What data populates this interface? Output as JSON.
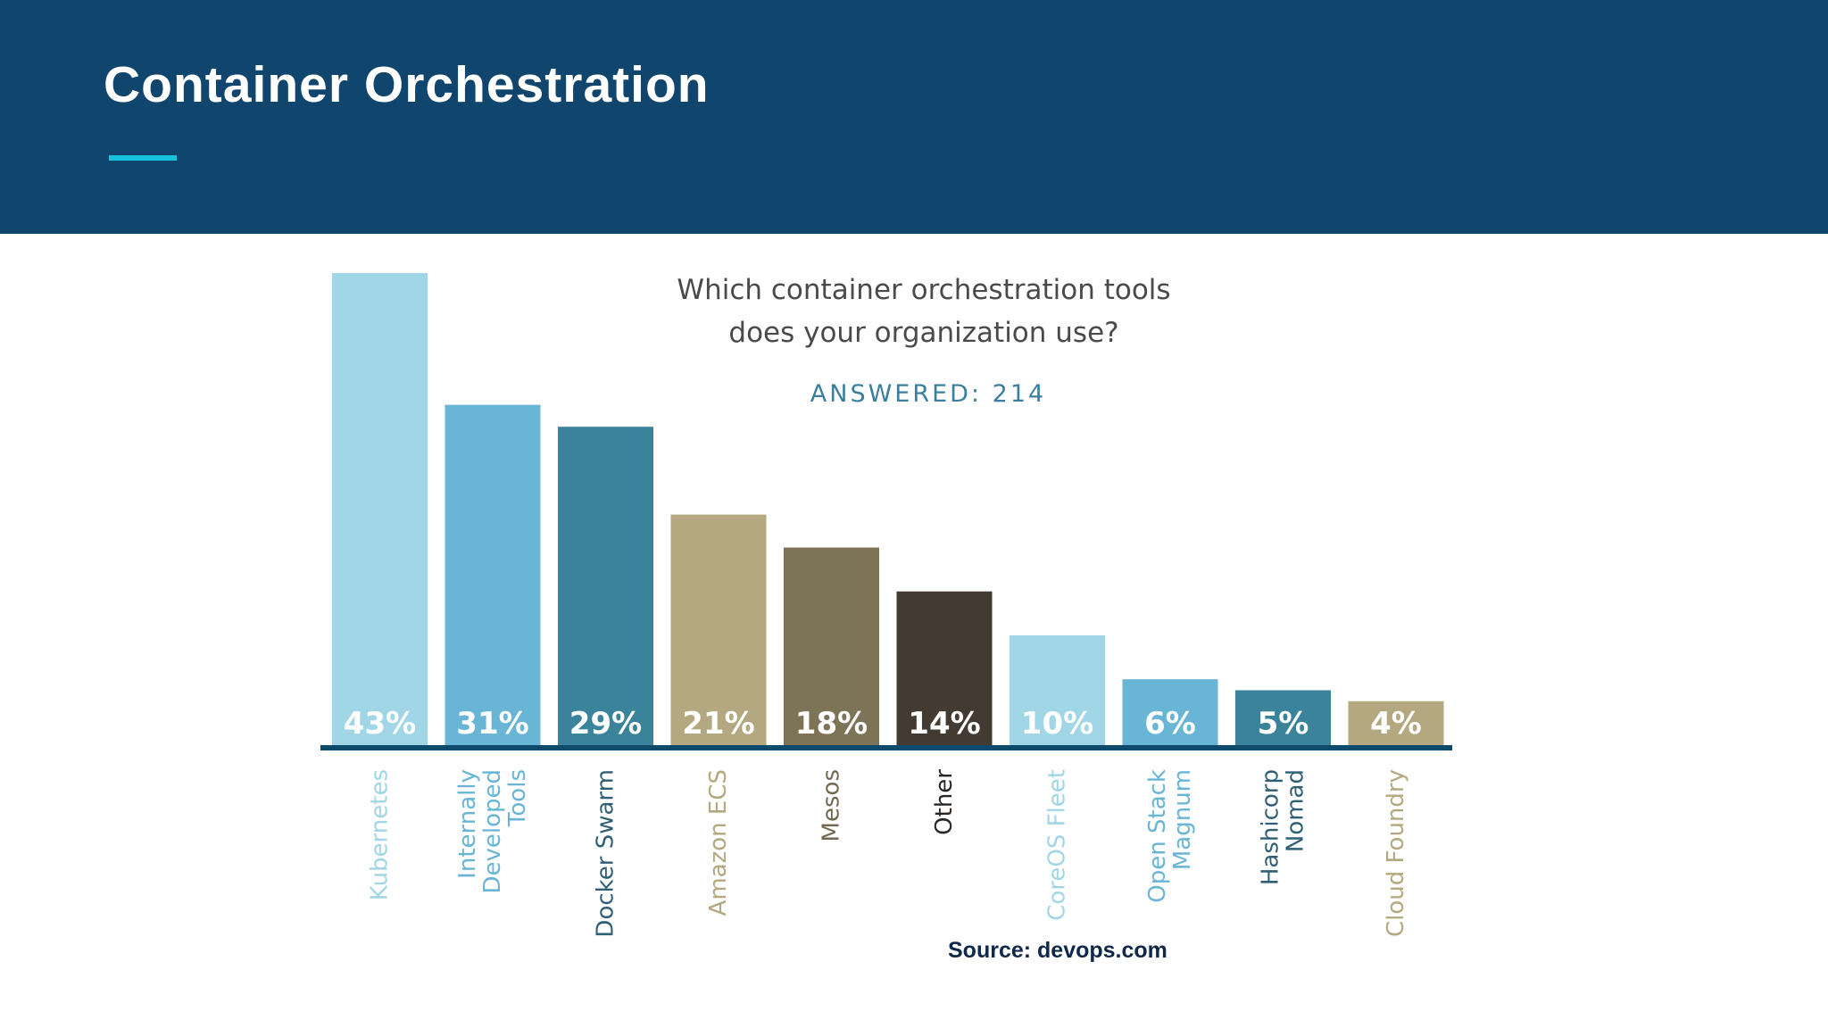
{
  "slide": {
    "title": "Container Orchestration",
    "source": "Source: devops.com"
  },
  "colors": {
    "header_bg": "#10456d",
    "accent": "#17c0dd",
    "axis": "#0d4a6b"
  },
  "chart_data": {
    "type": "bar",
    "title": "Which container orchestration tools",
    "subtitle": "does your organization use?",
    "answered": "ANSWERED: 214",
    "categories": [
      "Kubernetes",
      "Internally Developed Tools",
      "Docker Swarm",
      "Amazon ECS",
      "Mesos",
      "Other",
      "CoreOS Fleet",
      "Open Stack Magnum",
      "Hashicorp Nomad",
      "Cloud Foundry"
    ],
    "category_lines": [
      [
        "Kubernetes"
      ],
      [
        "Internally",
        "Developed",
        "Tools"
      ],
      [
        "Docker Swarm"
      ],
      [
        "Amazon ECS"
      ],
      [
        "Mesos"
      ],
      [
        "Other"
      ],
      [
        "CoreOS Fleet"
      ],
      [
        "Open Stack",
        "Magnum"
      ],
      [
        "Hashicorp",
        "Nomad"
      ],
      [
        "Cloud Foundry"
      ]
    ],
    "values": [
      43,
      31,
      29,
      21,
      18,
      14,
      10,
      6,
      5,
      4
    ],
    "value_labels": [
      "43%",
      "31%",
      "29%",
      "21%",
      "18%",
      "14%",
      "10%",
      "6%",
      "5%",
      "4%"
    ],
    "bar_colors": [
      "#a0d6e6",
      "#69b5d5",
      "#3a839b",
      "#b3a87f",
      "#7d7457",
      "#433a31",
      "#a0d6e6",
      "#69b5d5",
      "#3a839b",
      "#b3a87f"
    ],
    "label_colors": [
      "#a0d6e6",
      "#69b5d5",
      "#2e5f75",
      "#b3a87f",
      "#706850",
      "#2a2520",
      "#a0d6e6",
      "#69b5d5",
      "#2e5f75",
      "#b3a87f"
    ],
    "ylim": [
      0,
      43
    ],
    "xlabel": "",
    "ylabel": "",
    "grid": false,
    "legend": "none"
  }
}
